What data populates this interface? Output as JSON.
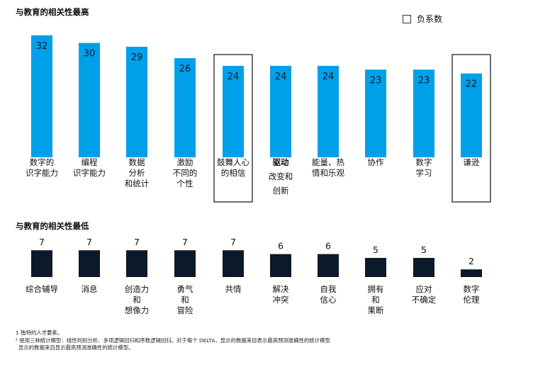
{
  "chart_data": [
    {
      "type": "bar",
      "title": "与教育的相关性最高",
      "legend": "负系数",
      "colors": {
        "bar": "#00a0e9",
        "value_text": "#0a1a2a",
        "highlight_border": "#111111"
      },
      "categories": [
        "数字的\n识字能力",
        "编程\n识字能力",
        "数据\n分析\n和统计",
        "激励\n不同的\n个性",
        "鼓舞人心\n的相信",
        "驱动\n改变和\n创新",
        "能量、热\n情和乐观",
        "协作",
        "数字\n学习",
        "谦逊"
      ],
      "values": [
        32,
        30,
        29,
        26,
        24,
        24,
        24,
        23,
        23,
        22
      ],
      "bold_first_line": [
        false,
        false,
        false,
        false,
        false,
        true,
        false,
        false,
        false,
        false
      ],
      "negative_highlight": [
        false,
        false,
        false,
        false,
        true,
        false,
        false,
        false,
        false,
        true
      ]
    },
    {
      "type": "bar",
      "title": "与教育的相关性最低",
      "colors": {
        "bar": "#0a1a2a",
        "value_text": "#111111"
      },
      "categories": [
        "综合辅导",
        "消息",
        "创造力\n和\n想像力",
        "勇气\n和\n冒险",
        "共情",
        "解决\n冲突",
        "自我\n信心",
        "拥有\n和\n果断",
        "应对\n不确定",
        "数字\n伦理"
      ],
      "values": [
        7,
        7,
        7,
        7,
        7,
        6,
        6,
        5,
        5,
        2
      ]
    }
  ],
  "footnotes": [
    "1 独特的人才要素。",
    "² 使用三种统计模型：线性判别分析、多项逻辑回归和序数逻辑回归。对于每个 DELTA，显示的数据来自表示最高预测准确性的统计模型",
    "显示的数据来自显示最高预测准确性的统计模型。"
  ]
}
